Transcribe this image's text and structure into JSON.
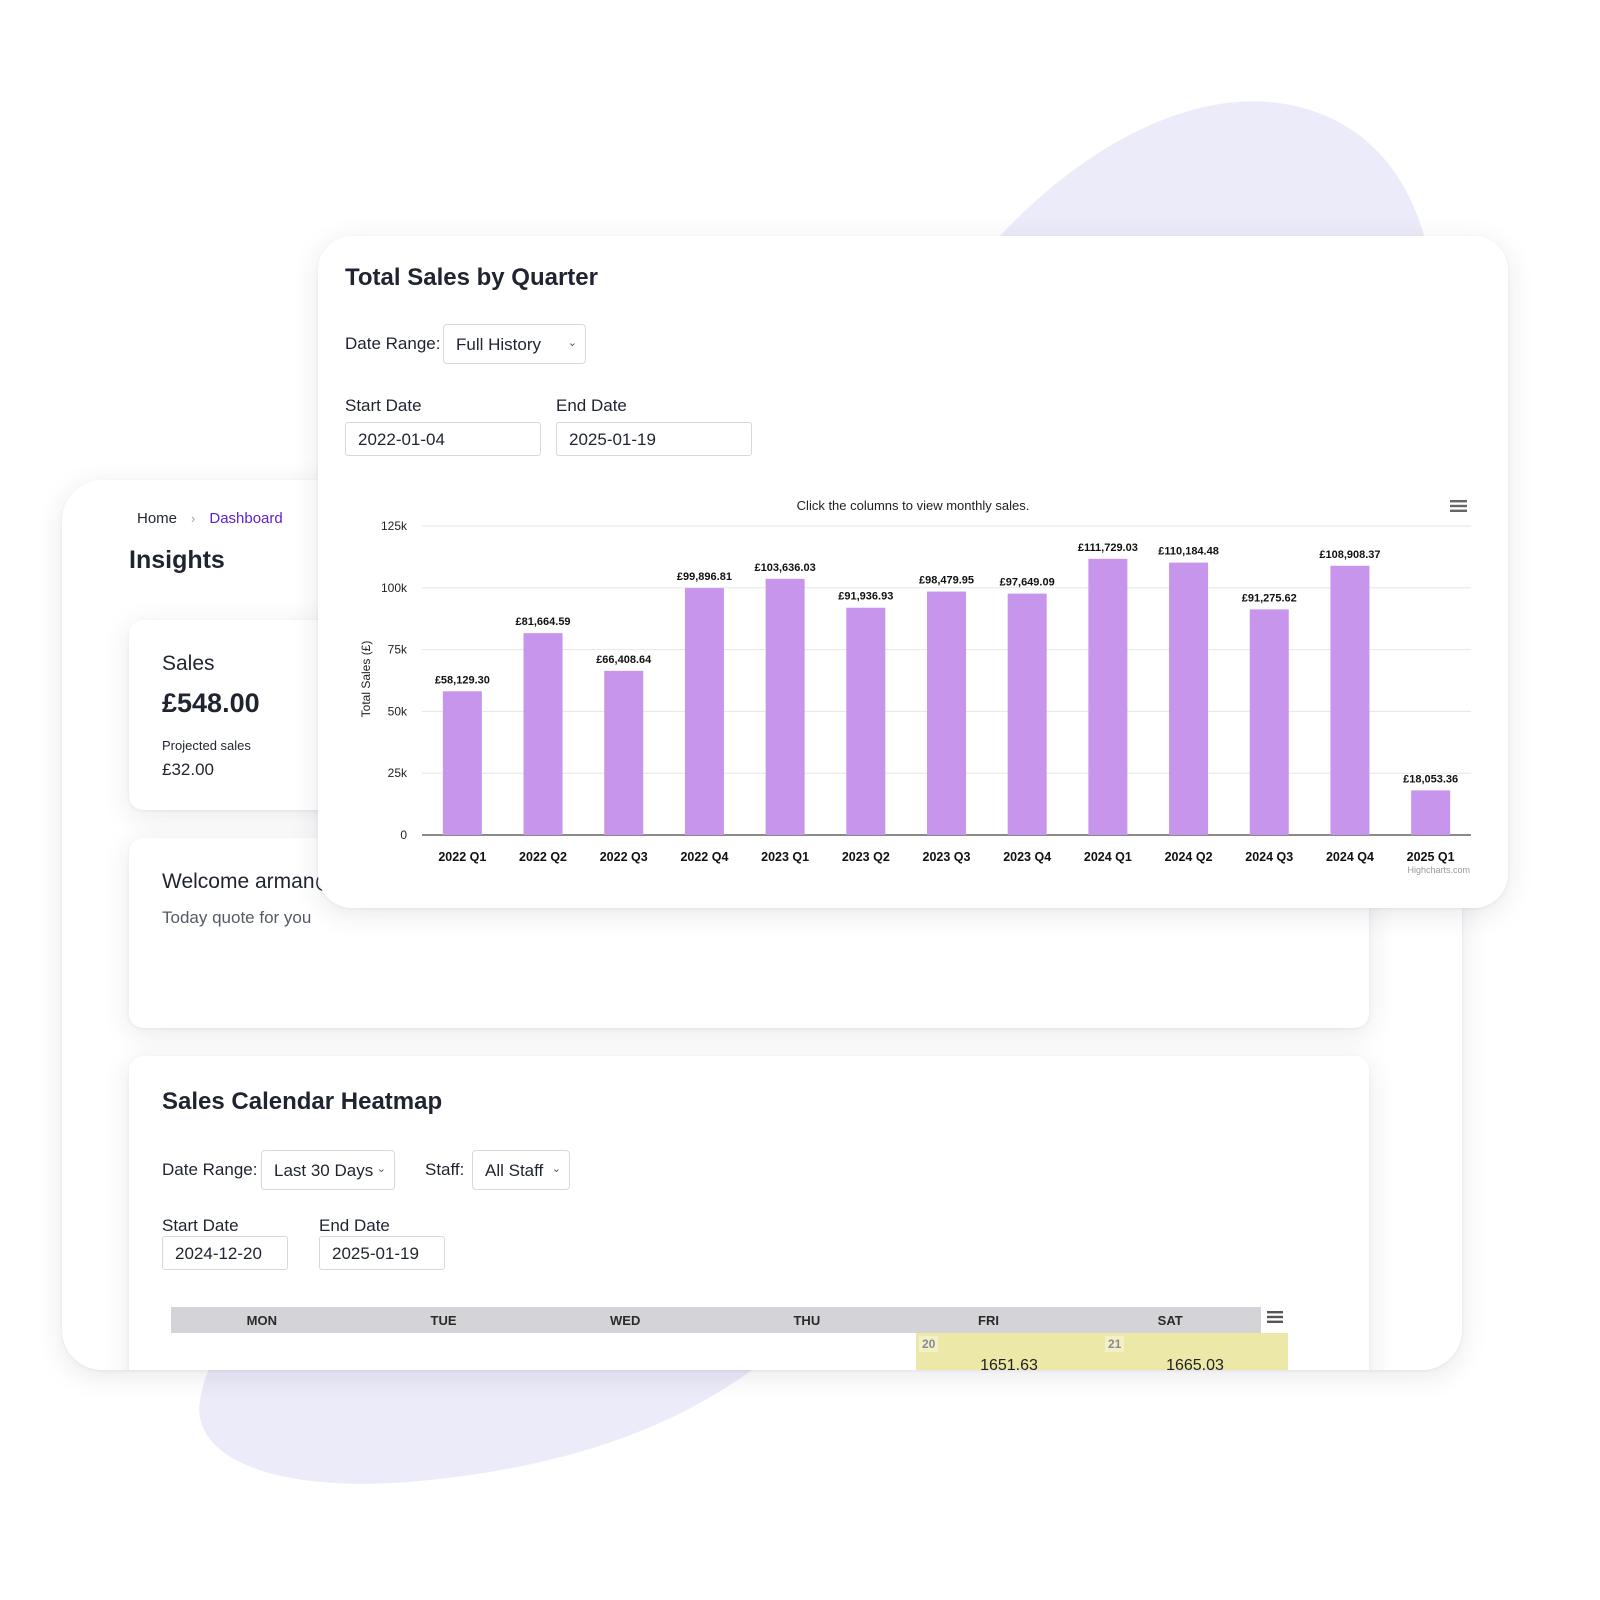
{
  "breadcrumb": {
    "home": "Home",
    "separator": "›",
    "current": "Dashboard"
  },
  "page_title": "Insights",
  "sales_card": {
    "label": "Sales",
    "value": "£548.00",
    "projected_label": "Projected sales",
    "projected_value": "£32.00"
  },
  "welcome": {
    "text": "Welcome arman@",
    "quote_label": "Today quote for you"
  },
  "heatmap": {
    "title": "Sales Calendar Heatmap",
    "date_range_label": "Date Range:",
    "date_range_value": "Last 30 Days",
    "staff_label": "Staff:",
    "staff_value": "All Staff",
    "start_label": "Start Date",
    "start_value": "2024-12-20",
    "end_label": "End Date",
    "end_value": "2025-01-19",
    "days": [
      "MON",
      "TUE",
      "WED",
      "THU",
      "FRI",
      "SAT"
    ],
    "cells": [
      {
        "day": "20",
        "value": "1651.63"
      },
      {
        "day": "21",
        "value": "1665.03"
      }
    ],
    "cell_color": "#ebe8a8"
  },
  "chart_panel": {
    "title": "Total Sales by Quarter",
    "date_range_label": "Date Range:",
    "date_range_value": "Full History",
    "start_label": "Start Date",
    "start_value": "2022-01-04",
    "end_label": "End Date",
    "end_value": "2025-01-19"
  },
  "chart_data": {
    "type": "bar",
    "title": "",
    "subtitle": "Click the columns to view monthly sales.",
    "xlabel": "",
    "ylabel": "Total Sales (£)",
    "ylim": [
      0,
      125000
    ],
    "yticks": [
      0,
      25000,
      50000,
      75000,
      100000,
      125000
    ],
    "ytick_labels": [
      "0",
      "25k",
      "50k",
      "75k",
      "100k",
      "125k"
    ],
    "grid": true,
    "categories": [
      "2022 Q1",
      "2022 Q2",
      "2022 Q3",
      "2022 Q4",
      "2023 Q1",
      "2023 Q2",
      "2023 Q3",
      "2023 Q4",
      "2024 Q1",
      "2024 Q2",
      "2024 Q3",
      "2024 Q4",
      "2025 Q1"
    ],
    "values": [
      58129.3,
      81664.59,
      66408.64,
      99896.81,
      103636.03,
      91936.93,
      98479.95,
      97649.09,
      111729.03,
      110184.48,
      91275.62,
      108908.37,
      18053.36
    ],
    "data_labels": [
      "£58,129.30",
      "£81,664.59",
      "£66,408.64",
      "£99,896.81",
      "£103,636.03",
      "£91,936.93",
      "£98,479.95",
      "£97,649.09",
      "£111,729.03",
      "£110,184.48",
      "£91,275.62",
      "£108,908.37",
      "£18,053.36"
    ],
    "bar_color": "#c795ec",
    "credits": "Highcharts.com"
  },
  "colors": {
    "accent": "#5b21d6",
    "blob": "#ecebf9",
    "bar": "#c795ec"
  }
}
